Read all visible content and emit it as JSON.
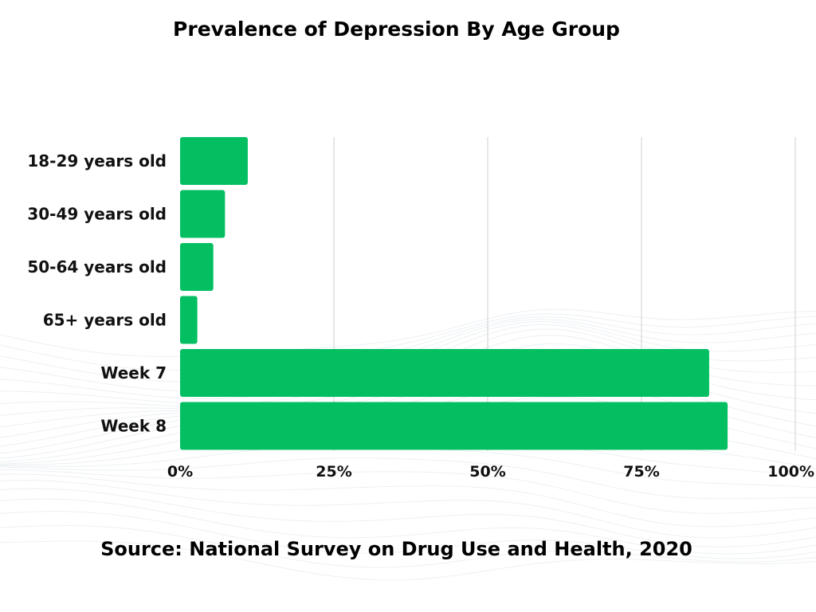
{
  "colors": {
    "bar": "#03bf62",
    "grid": "#cfcfcf",
    "waves": "#dce3ea"
  },
  "chart_data": {
    "type": "bar",
    "orientation": "horizontal",
    "title": "Prevalence of Depression By Age Group",
    "categories": [
      "18-29 years old",
      "30-49 years old",
      "50-64 years old",
      "65+ years old",
      "Week 7",
      "Week 8"
    ],
    "values": [
      11,
      7.3,
      5.4,
      2.8,
      86,
      89
    ],
    "xlim": [
      0,
      100
    ],
    "xticks": [
      "0%",
      "25%",
      "50%",
      "75%",
      "100%"
    ],
    "grid": true,
    "legend": "none"
  },
  "source": "Source: National Survey on Drug Use and Health, 2020"
}
